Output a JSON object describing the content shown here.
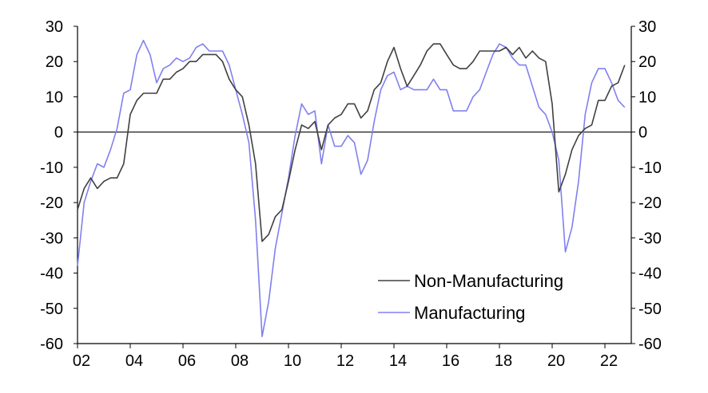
{
  "chart_data": {
    "type": "line",
    "title": "",
    "xlabel": "",
    "ylabel": "",
    "xlim": [
      2002,
      2023
    ],
    "ylim": [
      -60,
      30
    ],
    "y_ticks": [
      30,
      20,
      10,
      0,
      -10,
      -20,
      -30,
      -40,
      -50,
      -60
    ],
    "y_tick_labels": [
      "30",
      "20",
      "10",
      "0",
      "-10",
      "-20",
      "-30",
      "-40",
      "-50",
      "-60"
    ],
    "x_ticks": [
      2002,
      2004,
      2006,
      2008,
      2010,
      2012,
      2014,
      2016,
      2018,
      2020,
      2022
    ],
    "x_tick_labels": [
      "02",
      "04",
      "06",
      "08",
      "10",
      "12",
      "14",
      "16",
      "18",
      "20",
      "22"
    ],
    "grid": false,
    "zero_line": true,
    "secondary_y_axis": true,
    "legend": {
      "position": "bottom-right"
    },
    "series": [
      {
        "name": "Non-Manufacturing",
        "color": "#404040",
        "x": [
          2002.0,
          2002.25,
          2002.5,
          2002.75,
          2003.0,
          2003.25,
          2003.5,
          2003.75,
          2004.0,
          2004.25,
          2004.5,
          2004.75,
          2005.0,
          2005.25,
          2005.5,
          2005.75,
          2006.0,
          2006.25,
          2006.5,
          2006.75,
          2007.0,
          2007.25,
          2007.5,
          2007.75,
          2008.0,
          2008.25,
          2008.5,
          2008.75,
          2009.0,
          2009.25,
          2009.5,
          2009.75,
          2010.0,
          2010.25,
          2010.5,
          2010.75,
          2011.0,
          2011.25,
          2011.5,
          2011.75,
          2012.0,
          2012.25,
          2012.5,
          2012.75,
          2013.0,
          2013.25,
          2013.5,
          2013.75,
          2014.0,
          2014.25,
          2014.5,
          2014.75,
          2015.0,
          2015.25,
          2015.5,
          2015.75,
          2016.0,
          2016.25,
          2016.5,
          2016.75,
          2017.0,
          2017.25,
          2017.5,
          2017.75,
          2018.0,
          2018.25,
          2018.5,
          2018.75,
          2019.0,
          2019.25,
          2019.5,
          2019.75,
          2020.0,
          2020.25,
          2020.5,
          2020.75,
          2021.0,
          2021.25,
          2021.5,
          2021.75,
          2022.0,
          2022.25,
          2022.5,
          2022.75
        ],
        "values": [
          -22,
          -16,
          -13,
          -16,
          -14,
          -13,
          -13,
          -9,
          5,
          9,
          11,
          11,
          11,
          15,
          15,
          17,
          18,
          20,
          20,
          22,
          22,
          22,
          20,
          15,
          12,
          10,
          2,
          -9,
          -31,
          -29,
          -24,
          -22,
          -14,
          -5,
          2,
          1,
          3,
          -5,
          2,
          4,
          5,
          8,
          8,
          4,
          6,
          12,
          14,
          20,
          24,
          18,
          13,
          16,
          19,
          23,
          25,
          25,
          22,
          19,
          18,
          18,
          20,
          23,
          23,
          23,
          23,
          24,
          22,
          24,
          21,
          23,
          21,
          20,
          8,
          -17,
          -12,
          -5,
          -1,
          1,
          2,
          9,
          9,
          13,
          14,
          19
        ]
      },
      {
        "name": "Manufacturing",
        "color": "#8080f0",
        "x": [
          2002.0,
          2002.25,
          2002.5,
          2002.75,
          2003.0,
          2003.25,
          2003.5,
          2003.75,
          2004.0,
          2004.25,
          2004.5,
          2004.75,
          2005.0,
          2005.25,
          2005.5,
          2005.75,
          2006.0,
          2006.25,
          2006.5,
          2006.75,
          2007.0,
          2007.25,
          2007.5,
          2007.75,
          2008.0,
          2008.25,
          2008.5,
          2008.75,
          2009.0,
          2009.25,
          2009.5,
          2009.75,
          2010.0,
          2010.25,
          2010.5,
          2010.75,
          2011.0,
          2011.25,
          2011.5,
          2011.75,
          2012.0,
          2012.25,
          2012.5,
          2012.75,
          2013.0,
          2013.25,
          2013.5,
          2013.75,
          2014.0,
          2014.25,
          2014.5,
          2014.75,
          2015.0,
          2015.25,
          2015.5,
          2015.75,
          2016.0,
          2016.25,
          2016.5,
          2016.75,
          2017.0,
          2017.25,
          2017.5,
          2017.75,
          2018.0,
          2018.25,
          2018.5,
          2018.75,
          2019.0,
          2019.25,
          2019.5,
          2019.75,
          2020.0,
          2020.25,
          2020.5,
          2020.75,
          2021.0,
          2021.25,
          2021.5,
          2021.75,
          2022.0,
          2022.25,
          2022.5,
          2022.75
        ],
        "values": [
          -38,
          -20,
          -14,
          -9,
          -10,
          -5,
          1,
          11,
          12,
          22,
          26,
          22,
          14,
          18,
          19,
          21,
          20,
          21,
          24,
          25,
          23,
          23,
          23,
          19,
          12,
          5,
          -3,
          -25,
          -58,
          -48,
          -33,
          -23,
          -13,
          -1,
          8,
          5,
          6,
          -9,
          2,
          -4,
          -4,
          -1,
          -3,
          -12,
          -8,
          3,
          12,
          16,
          17,
          12,
          13,
          12,
          12,
          12,
          15,
          12,
          12,
          6,
          6,
          6,
          10,
          12,
          17,
          22,
          25,
          24,
          21,
          19,
          19,
          13,
          7,
          5,
          0,
          -8,
          -34,
          -27,
          -14,
          5,
          14,
          18,
          18,
          14,
          9,
          7
        ]
      }
    ]
  }
}
